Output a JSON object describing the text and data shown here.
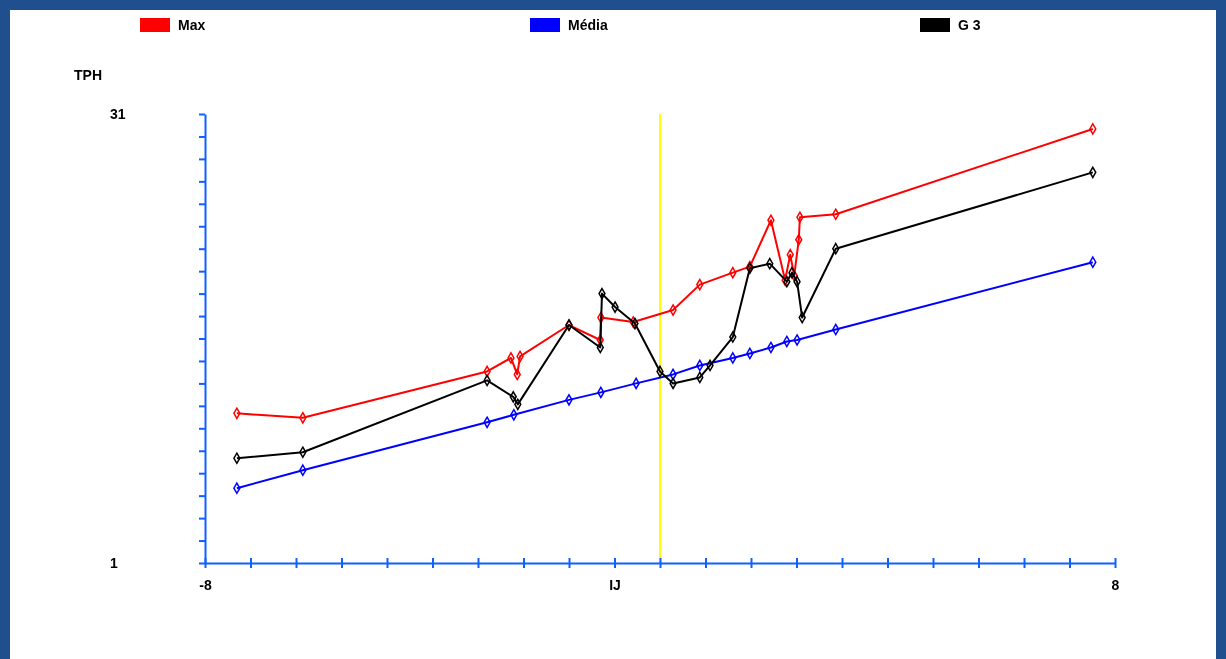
{
  "chart_data": {
    "type": "line",
    "ylabel": "TPH",
    "legend": "top",
    "marker": "diamond",
    "xlim": [
      -8,
      8
    ],
    "ylim": [
      1,
      31
    ],
    "xticks": [
      -8,
      {
        "value": -7.2,
        "label": null
      },
      {
        "value": -6.4,
        "label": null
      },
      {
        "value": -5.6,
        "label": null
      },
      {
        "value": -4.8,
        "label": null
      },
      {
        "value": -4,
        "label": null
      },
      {
        "value": -3.2,
        "label": null
      },
      {
        "value": -2.4,
        "label": null
      },
      {
        "value": -1.6,
        "label": null
      },
      {
        "value": -0.8,
        "label": "IJ"
      },
      {
        "value": 0,
        "label": null
      },
      {
        "value": 0.8,
        "label": null
      },
      {
        "value": 1.6,
        "label": null
      },
      {
        "value": 2.4,
        "label": null
      },
      {
        "value": 3.2,
        "label": null
      },
      {
        "value": 4,
        "label": null
      },
      {
        "value": 4.8,
        "label": null
      },
      {
        "value": 5.6,
        "label": null
      },
      {
        "value": 6.4,
        "label": null
      },
      {
        "value": 7.2,
        "label": null
      },
      8
    ],
    "yticks": [
      1,
      {
        "value": 2.5,
        "label": null
      },
      {
        "value": 4,
        "label": null
      },
      {
        "value": 5.5,
        "label": null
      },
      {
        "value": 7,
        "label": null
      },
      {
        "value": 8.5,
        "label": null
      },
      {
        "value": 10,
        "label": null
      },
      {
        "value": 11.5,
        "label": null
      },
      {
        "value": 13,
        "label": null
      },
      {
        "value": 14.5,
        "label": null
      },
      {
        "value": 16,
        "label": null
      },
      {
        "value": 17.5,
        "label": null
      },
      {
        "value": 19,
        "label": null
      },
      {
        "value": 20.5,
        "label": null
      },
      {
        "value": 22,
        "label": null
      },
      {
        "value": 23.5,
        "label": null
      },
      {
        "value": 25,
        "label": null
      },
      {
        "value": 26.5,
        "label": null
      },
      {
        "value": 28,
        "label": null
      },
      {
        "value": 29.5,
        "label": null
      },
      31
    ],
    "ref_lines": [
      {
        "axis": "x",
        "value": 0,
        "color": "#ffff00"
      }
    ],
    "series": [
      {
        "name": "Max",
        "color": "#ff0000",
        "x": [
          -7.44,
          -6.28,
          -3.04,
          -2.62,
          -2.51,
          -2.46,
          -1.6,
          -1.05,
          -1.04,
          -0.47,
          0.23,
          0.7,
          1.28,
          1.58,
          1.95,
          2.2,
          2.29,
          2.36,
          2.44,
          2.46,
          3.09,
          7.61
        ],
        "values": [
          11.0,
          10.7,
          13.8,
          14.7,
          13.6,
          14.8,
          16.9,
          15.9,
          17.4,
          17.1,
          17.9,
          19.6,
          20.4,
          20.8,
          23.9,
          19.9,
          21.6,
          20.2,
          22.6,
          24.1,
          24.3,
          30.0
        ]
      },
      {
        "name": "Média",
        "color": "#0000ff",
        "x": [
          -7.44,
          -6.28,
          -3.04,
          -2.57,
          -1.6,
          -1.04,
          -0.42,
          0.23,
          0.7,
          1.28,
          1.58,
          1.95,
          2.23,
          2.41,
          3.09,
          7.61
        ],
        "values": [
          6.0,
          7.2,
          10.4,
          10.9,
          11.9,
          12.4,
          13.0,
          13.6,
          14.2,
          14.7,
          15.0,
          15.4,
          15.8,
          15.9,
          16.6,
          21.1
        ]
      },
      {
        "name": "G 3",
        "color": "#000000",
        "x": [
          -7.44,
          -6.28,
          -3.04,
          -2.58,
          -2.5,
          -1.6,
          -1.05,
          -1.02,
          -0.79,
          -0.44,
          0,
          0.23,
          0.7,
          0.88,
          1.28,
          1.58,
          1.93,
          2.23,
          2.32,
          2.41,
          2.5,
          3.09,
          7.61
        ],
        "values": [
          8.0,
          8.4,
          13.2,
          12.1,
          11.6,
          16.9,
          15.4,
          19.0,
          18.1,
          17.0,
          13.8,
          13.0,
          13.4,
          14.2,
          16.1,
          20.7,
          21.0,
          19.8,
          20.4,
          19.8,
          17.4,
          22.0,
          27.1
        ]
      }
    ]
  }
}
